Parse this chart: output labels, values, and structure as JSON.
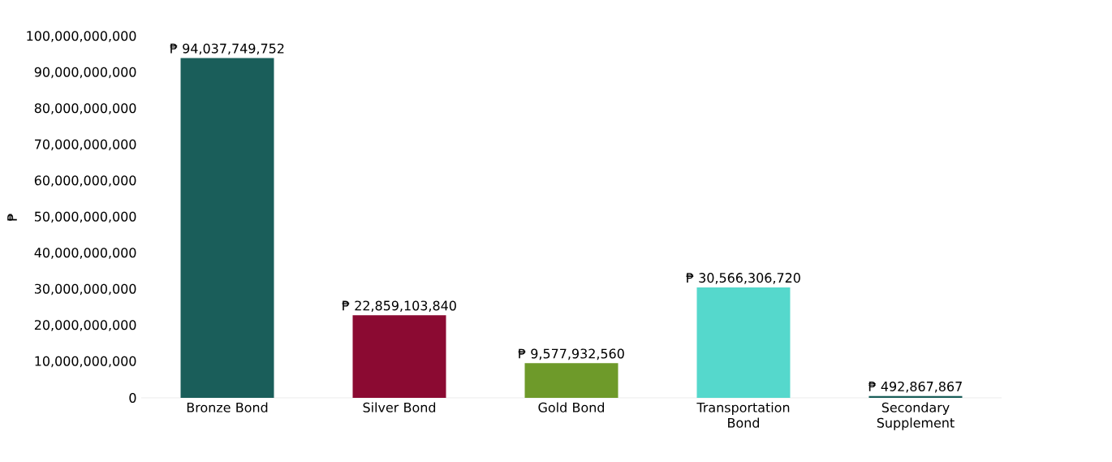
{
  "chart_data": {
    "type": "bar",
    "ylabel": "₱",
    "categories": [
      "Bronze Bond",
      "Silver Bond",
      "Gold Bond",
      "Transportation Bond",
      "Secondary Supplement"
    ],
    "values": [
      94037749752,
      22859103840,
      9577932560,
      30566306720,
      492867867
    ],
    "value_labels": [
      "₱ 94,037,749,752",
      "₱ 22,859,103,840",
      "₱ 9,577,932,560",
      "₱ 30,566,306,720",
      "₱ 492,867,867"
    ],
    "colors": [
      "#1a5e5a",
      "#8b0a32",
      "#6e9a2a",
      "#55d8cc",
      "#1a5e5a"
    ],
    "ylim": [
      0,
      100000000000
    ],
    "yticks": [
      {
        "value": 0,
        "label": "0"
      },
      {
        "value": 10000000000,
        "label": "10,000,000,000"
      },
      {
        "value": 20000000000,
        "label": "20,000,000,000"
      },
      {
        "value": 30000000000,
        "label": "30,000,000,000"
      },
      {
        "value": 40000000000,
        "label": "40,000,000,000"
      },
      {
        "value": 50000000000,
        "label": "50,000,000,000"
      },
      {
        "value": 60000000000,
        "label": "60,000,000,000"
      },
      {
        "value": 70000000000,
        "label": "70,000,000,000"
      },
      {
        "value": 80000000000,
        "label": "80,000,000,000"
      },
      {
        "value": 90000000000,
        "label": "90,000,000,000"
      },
      {
        "value": 100000000000,
        "label": "100,000,000,000"
      }
    ]
  }
}
